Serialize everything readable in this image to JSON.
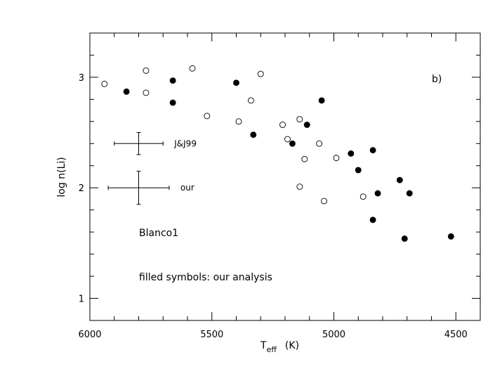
{
  "chart_data": {
    "type": "scatter",
    "xlabel": "T",
    "xlabel_sub": "eff",
    "xlabel_unit": "(K)",
    "ylabel": "log n(Li)",
    "xlim": [
      6000,
      4400
    ],
    "ylim": [
      0.8,
      3.4
    ],
    "x_reversed": true,
    "xticks": [
      6000,
      5500,
      5000,
      4500
    ],
    "yticks": [
      1,
      2,
      3
    ],
    "panel_label": "b)",
    "annotations": {
      "cluster": "Blanco1",
      "note": "filled symbols: our analysis"
    },
    "error_bars": [
      {
        "label": "J&J99",
        "x": 5800,
        "y": 2.4,
        "xerr": 100,
        "yerr": 0.1
      },
      {
        "label": "our",
        "x": 5800,
        "y": 2.0,
        "xerr": 125,
        "yerr": 0.15
      }
    ],
    "series": [
      {
        "marker": "open-circle",
        "points": [
          [
            5940,
            2.94
          ],
          [
            5770,
            3.06
          ],
          [
            5770,
            2.86
          ],
          [
            5580,
            3.08
          ],
          [
            5520,
            2.65
          ],
          [
            5390,
            2.6
          ],
          [
            5340,
            2.79
          ],
          [
            5300,
            3.03
          ],
          [
            5210,
            2.57
          ],
          [
            5190,
            2.44
          ],
          [
            5140,
            2.62
          ],
          [
            5120,
            2.26
          ],
          [
            5140,
            2.01
          ],
          [
            5060,
            2.4
          ],
          [
            5040,
            1.88
          ],
          [
            4990,
            2.27
          ],
          [
            4880,
            1.92
          ]
        ]
      },
      {
        "marker": "filled-circle",
        "points": [
          [
            5850,
            2.87
          ],
          [
            5660,
            2.97
          ],
          [
            5660,
            2.77
          ],
          [
            5400,
            2.95
          ],
          [
            5330,
            2.48
          ],
          [
            5170,
            2.4
          ],
          [
            5110,
            2.57
          ],
          [
            5050,
            2.79
          ],
          [
            4930,
            2.31
          ],
          [
            4900,
            2.16
          ],
          [
            4840,
            2.34
          ],
          [
            4840,
            1.71
          ],
          [
            4820,
            1.95
          ],
          [
            4730,
            2.07
          ],
          [
            4710,
            1.54
          ],
          [
            4690,
            1.95
          ],
          [
            4520,
            1.56
          ]
        ]
      }
    ]
  }
}
